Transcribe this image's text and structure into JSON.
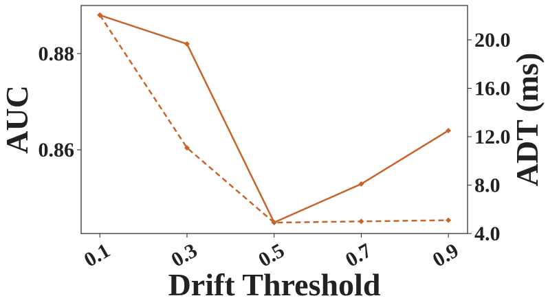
{
  "chart_data": {
    "type": "line",
    "x_label": "Drift Threshold",
    "y_label": "AUC",
    "y2_label": "ADT (ms)",
    "x": [
      0.1,
      0.3,
      0.5,
      0.7,
      0.9
    ],
    "series": [
      {
        "color": "#c8642a",
        "dash": false,
        "values": [
          0.888,
          0.882,
          0.8449,
          0.8529,
          0.864
        ]
      },
      {
        "color": "#c8642a",
        "dash": true,
        "axis": "y2",
        "values": [
          22.05,
          11.08,
          4.9,
          5.0,
          5.1
        ]
      }
    ],
    "xlim": [
      0.057,
      0.944
    ],
    "xticks": [
      0.1,
      0.3,
      0.5,
      0.7,
      0.9
    ],
    "ylim": [
      0.8426,
      0.89
    ],
    "yticks": [
      0.86,
      0.88
    ],
    "y2lim": [
      4.0,
      22.84
    ],
    "y2ticks": [
      {
        "value": 4,
        "label": "4.0"
      },
      {
        "value": 8,
        "label": "8.0"
      },
      {
        "value": 12,
        "label": "12.0"
      },
      {
        "value": 16,
        "label": "16.0"
      },
      {
        "value": 20,
        "label": "20.0"
      }
    ]
  }
}
